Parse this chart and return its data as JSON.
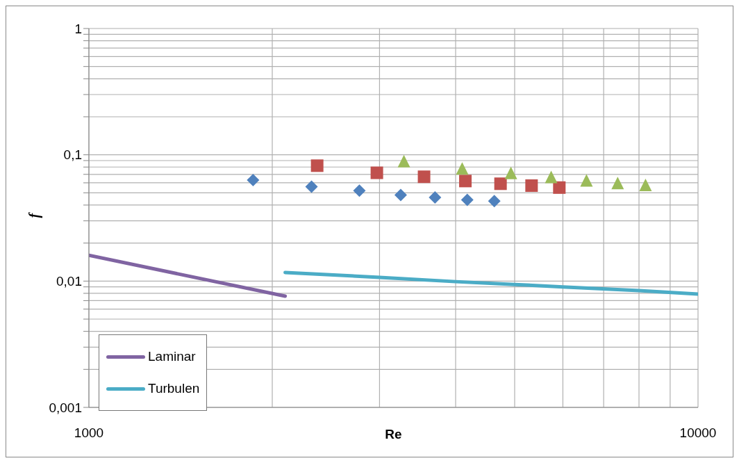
{
  "chart_data": {
    "type": "scatter",
    "xlabel": "Re",
    "ylabel": "f",
    "log": "xy",
    "grid": true,
    "legend": "bottom left",
    "xlim": [
      1000,
      10000
    ],
    "xticks": [
      {
        "value": 1000,
        "label": "1000"
      },
      {
        "value": 2000,
        "label": null
      },
      {
        "value": 3000,
        "label": null
      },
      {
        "value": 4000,
        "label": null
      },
      {
        "value": 5000,
        "label": null
      },
      {
        "value": 6000,
        "label": null
      },
      {
        "value": 7000,
        "label": null
      },
      {
        "value": 8000,
        "label": null
      },
      {
        "value": 9000,
        "label": null
      },
      {
        "value": 10000,
        "label": "10000"
      }
    ],
    "ylim": [
      0.001,
      1
    ],
    "yticks": [
      {
        "value": 0.001,
        "label": "0,001"
      },
      {
        "value": 0.002,
        "label": null
      },
      {
        "value": 0.003,
        "label": null
      },
      {
        "value": 0.004,
        "label": null
      },
      {
        "value": 0.005,
        "label": null
      },
      {
        "value": 0.006,
        "label": null
      },
      {
        "value": 0.007,
        "label": null
      },
      {
        "value": 0.008,
        "label": null
      },
      {
        "value": 0.009,
        "label": null
      },
      {
        "value": 0.01,
        "label": "0,01"
      },
      {
        "value": 0.02,
        "label": null
      },
      {
        "value": 0.03,
        "label": null
      },
      {
        "value": 0.04,
        "label": null
      },
      {
        "value": 0.05,
        "label": null
      },
      {
        "value": 0.06,
        "label": null
      },
      {
        "value": 0.07,
        "label": null
      },
      {
        "value": 0.08,
        "label": null
      },
      {
        "value": 0.09,
        "label": null
      },
      {
        "value": 0.1,
        "label": "0,1"
      },
      {
        "value": 0.2,
        "label": null
      },
      {
        "value": 0.3,
        "label": null
      },
      {
        "value": 0.4,
        "label": null
      },
      {
        "value": 0.5,
        "label": null
      },
      {
        "value": 0.6,
        "label": null
      },
      {
        "value": 0.7,
        "label": null
      },
      {
        "value": 0.8,
        "label": null
      },
      {
        "value": 0.9,
        "label": null
      },
      {
        "value": 1,
        "label": "1"
      }
    ],
    "series": [
      {
        "marker": "diamond",
        "color": "#4f81bd",
        "x": [
          1860,
          2320,
          2780,
          3250,
          3700,
          4180,
          4630
        ],
        "values": [
          0.063,
          0.056,
          0.052,
          0.048,
          0.046,
          0.044,
          0.043
        ]
      },
      {
        "marker": "square",
        "color": "#c0504d",
        "x": [
          2370,
          2970,
          3550,
          4150,
          4740,
          5330,
          5920
        ],
        "values": [
          0.082,
          0.072,
          0.067,
          0.062,
          0.059,
          0.057,
          0.055
        ]
      },
      {
        "marker": "triangle",
        "color": "#9bbb59",
        "x": [
          3290,
          4100,
          4930,
          5740,
          6560,
          7380,
          8200
        ],
        "values": [
          0.088,
          0.077,
          0.071,
          0.066,
          0.062,
          0.059,
          0.057
        ]
      },
      {
        "type": "line",
        "name": "Laminar",
        "color": "#8064a2",
        "x": [
          1000,
          2100
        ],
        "values": [
          0.016,
          0.0076
        ]
      },
      {
        "type": "line",
        "name": "Turbulen",
        "color": "#4bacc6",
        "x": [
          2100,
          3000,
          4000,
          5000,
          6000,
          8000,
          10000
        ],
        "values": [
          0.0117,
          0.0107,
          0.0099,
          0.0094,
          0.009,
          0.0084,
          0.0079
        ]
      }
    ]
  }
}
